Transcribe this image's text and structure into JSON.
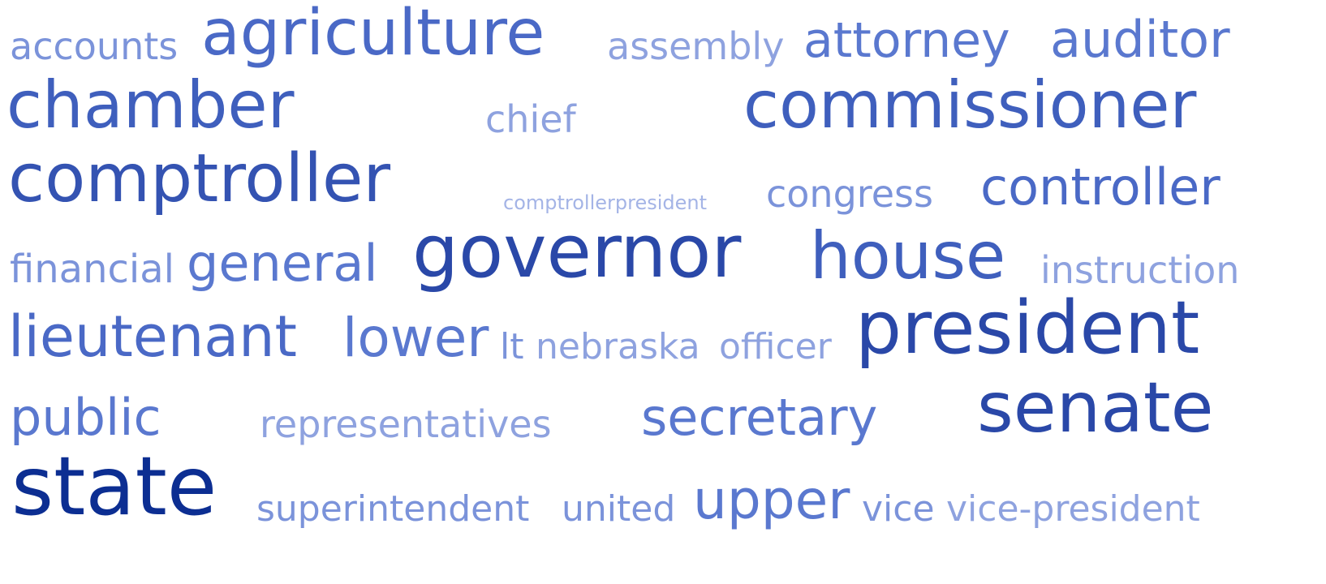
{
  "colors": {
    "background": "#ffffff",
    "palette": {
      "1": "#a4b4e6",
      "2": "#8ea2df",
      "3": "#7b93da",
      "4": "#6a86d4",
      "5": "#5a78cf",
      "6": "#4a69c6",
      "7": "#3f5fbd",
      "8": "#3453b2",
      "9": "#2a48a8",
      "10": "#1f3c9c",
      "11": "#0c2e92"
    }
  },
  "words": [
    {
      "text": "accounts",
      "weight": 3
    },
    {
      "text": "agriculture",
      "weight": 6
    },
    {
      "text": "assembly",
      "weight": 2
    },
    {
      "text": "attorney",
      "weight": 5
    },
    {
      "text": "auditor",
      "weight": 5
    },
    {
      "text": "chamber",
      "weight": 7
    },
    {
      "text": "chief",
      "weight": 2
    },
    {
      "text": "commissioner",
      "weight": 7
    },
    {
      "text": "comptroller",
      "weight": 8
    },
    {
      "text": "comptrollerpresident",
      "weight": 1
    },
    {
      "text": "congress",
      "weight": 3
    },
    {
      "text": "controller",
      "weight": 6
    },
    {
      "text": "financial",
      "weight": 3
    },
    {
      "text": "general",
      "weight": 5
    },
    {
      "text": "governor",
      "weight": 9
    },
    {
      "text": "house",
      "weight": 7
    },
    {
      "text": "instruction",
      "weight": 2
    },
    {
      "text": "lieutenant",
      "weight": 6
    },
    {
      "text": "lower",
      "weight": 5
    },
    {
      "text": "lt",
      "weight": 3
    },
    {
      "text": "nebraska",
      "weight": 2
    },
    {
      "text": "officer",
      "weight": 2
    },
    {
      "text": "president",
      "weight": 9
    },
    {
      "text": "public",
      "weight": 5
    },
    {
      "text": "representatives",
      "weight": 2
    },
    {
      "text": "secretary",
      "weight": 5
    },
    {
      "text": "senate",
      "weight": 9
    },
    {
      "text": "state",
      "weight": 11
    },
    {
      "text": "superintendent",
      "weight": 3
    },
    {
      "text": "united",
      "weight": 3
    },
    {
      "text": "upper",
      "weight": 5
    },
    {
      "text": "vice",
      "weight": 3
    },
    {
      "text": "vice-president",
      "weight": 2
    }
  ]
}
